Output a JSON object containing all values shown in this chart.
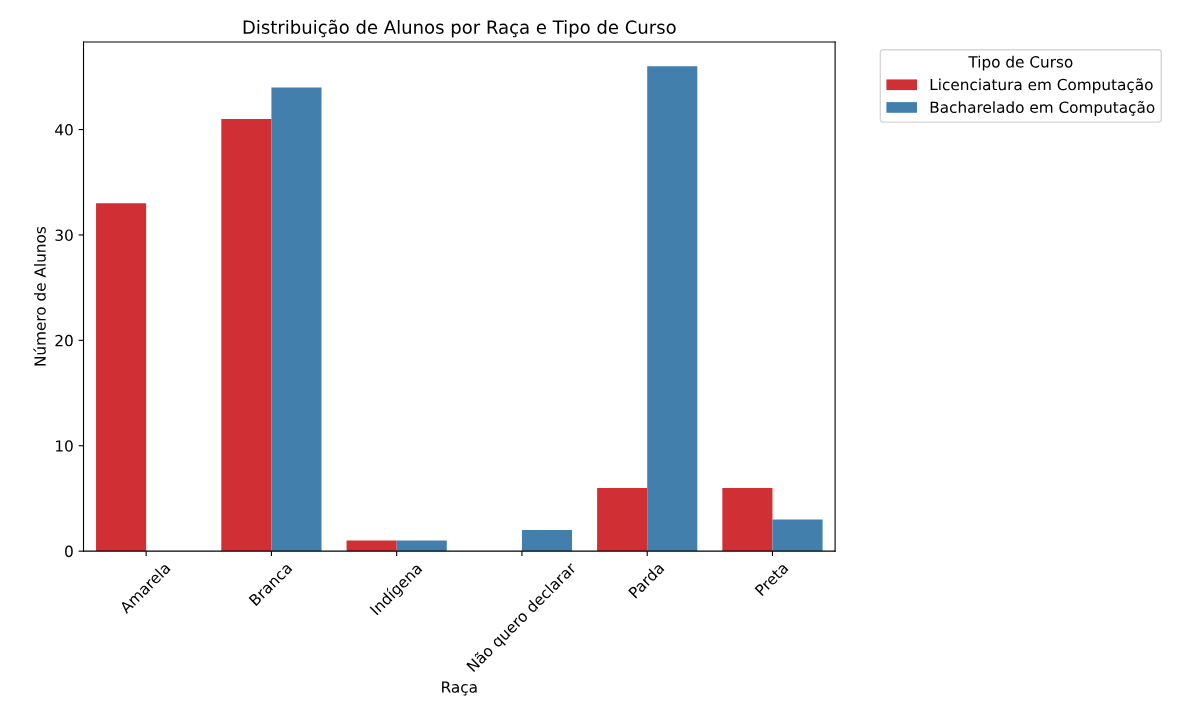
{
  "chart_data": {
    "type": "bar",
    "title": "Distribuição de Alunos por Raça e Tipo de Curso",
    "xlabel": "Raça",
    "ylabel": "Número de Alunos",
    "legend_title": "Tipo de Curso",
    "categories": [
      "Amarela",
      "Branca",
      "Indígena",
      "Não quero declarar",
      "Parda",
      "Preta"
    ],
    "series": [
      {
        "name": "Licenciatura em Computação",
        "color": "#d03034",
        "values": [
          33,
          41,
          1,
          0,
          6,
          6
        ]
      },
      {
        "name": "Bacharelado em Computação",
        "color": "#437fad",
        "values": [
          0,
          44,
          1,
          2,
          46,
          3
        ]
      }
    ],
    "ylim": [
      0,
      48.3
    ],
    "yticks": [
      0,
      10,
      20,
      30,
      40
    ],
    "grid": false,
    "legend": "right"
  }
}
